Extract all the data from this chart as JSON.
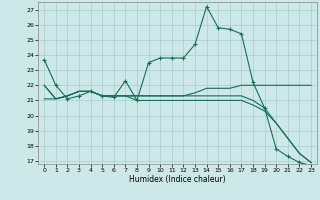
{
  "xlabel": "Humidex (Indice chaleur)",
  "bg_color": "#cce8e8",
  "grid_color": "#aacccc",
  "line_color": "#1a6b5a",
  "xlim": [
    -0.5,
    23.5
  ],
  "ylim": [
    16.8,
    27.5
  ],
  "yticks": [
    17,
    18,
    19,
    20,
    21,
    22,
    23,
    24,
    25,
    26,
    27
  ],
  "xticks": [
    0,
    1,
    2,
    3,
    4,
    5,
    6,
    7,
    8,
    9,
    10,
    11,
    12,
    13,
    14,
    15,
    16,
    17,
    18,
    19,
    20,
    21,
    22,
    23
  ],
  "series": [
    {
      "x": [
        0,
        1,
        2,
        3,
        4,
        5,
        6,
        7,
        8,
        9,
        10,
        11,
        12,
        13,
        14,
        15,
        16,
        17,
        18,
        19,
        20,
        21,
        22,
        23
      ],
      "y": [
        23.7,
        22.0,
        21.1,
        21.3,
        21.6,
        21.3,
        21.2,
        22.3,
        21.0,
        23.5,
        23.8,
        23.8,
        23.8,
        24.7,
        27.2,
        25.8,
        25.7,
        25.4,
        22.2,
        20.5,
        17.8,
        17.3,
        16.9,
        16.7
      ],
      "marker": "+"
    },
    {
      "x": [
        0,
        1,
        2,
        3,
        4,
        5,
        6,
        7,
        8,
        9,
        10,
        11,
        12,
        13,
        14,
        15,
        16,
        17,
        18,
        19,
        20,
        21,
        22,
        23
      ],
      "y": [
        22.0,
        21.1,
        21.3,
        21.6,
        21.6,
        21.3,
        21.3,
        21.3,
        21.3,
        21.3,
        21.3,
        21.3,
        21.3,
        21.5,
        21.8,
        21.8,
        21.8,
        22.0,
        22.0,
        22.0,
        22.0,
        22.0,
        22.0,
        22.0
      ],
      "marker": null
    },
    {
      "x": [
        0,
        1,
        2,
        3,
        4,
        5,
        6,
        7,
        8,
        9,
        10,
        11,
        12,
        13,
        14,
        15,
        16,
        17,
        18,
        19,
        20,
        21,
        22,
        23
      ],
      "y": [
        22.0,
        21.1,
        21.3,
        21.6,
        21.6,
        21.3,
        21.3,
        21.3,
        21.3,
        21.3,
        21.3,
        21.3,
        21.3,
        21.3,
        21.3,
        21.3,
        21.3,
        21.3,
        21.0,
        20.5,
        19.5,
        18.5,
        17.5,
        16.9
      ],
      "marker": null
    },
    {
      "x": [
        0,
        1,
        2,
        3,
        4,
        5,
        6,
        7,
        8,
        9,
        10,
        11,
        12,
        13,
        14,
        15,
        16,
        17,
        18,
        19,
        20,
        21,
        22,
        23
      ],
      "y": [
        21.1,
        21.1,
        21.3,
        21.6,
        21.6,
        21.3,
        21.3,
        21.3,
        21.0,
        21.0,
        21.0,
        21.0,
        21.0,
        21.0,
        21.0,
        21.0,
        21.0,
        21.0,
        20.7,
        20.3,
        19.5,
        18.5,
        17.5,
        16.9
      ],
      "marker": null
    }
  ]
}
